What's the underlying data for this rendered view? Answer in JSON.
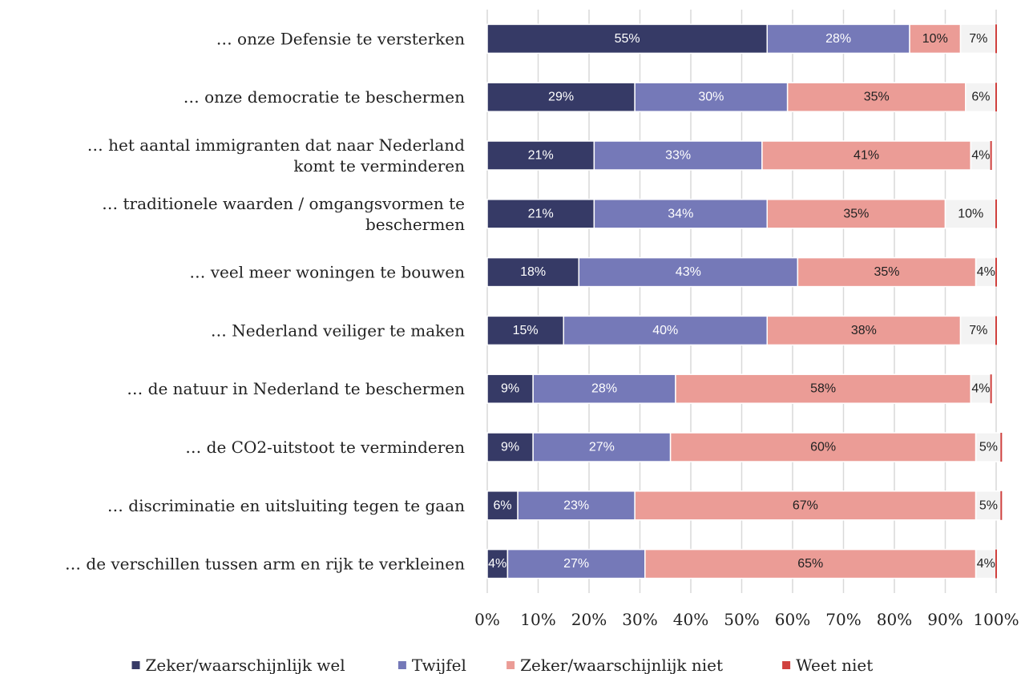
{
  "chart_data": {
    "type": "stacked-bar-horizontal",
    "categories": [
      "… onze Defensie te versterken",
      "… onze democratie te beschermen",
      "… het aantal immigranten dat naar Nederland\nkomt te verminderen",
      "… traditionele waarden / omgangsvormen te\nbeschermen",
      "… veel meer woningen te bouwen",
      "… Nederland veiliger te maken",
      "… de natuur in Nederland te beschermen",
      "… de CO2-uitstoot te verminderen",
      "… discriminatie en uitsluiting tegen te gaan",
      "… de verschillen tussen arm en rijk te verkleinen"
    ],
    "series": [
      {
        "name": "Zeker/waarschijnlijk wel",
        "color": "#363a66",
        "values": [
          55,
          29,
          21,
          21,
          18,
          15,
          9,
          9,
          6,
          4
        ],
        "value_labels": [
          "55%",
          "29%",
          "21%",
          "21%",
          "18%",
          "15%",
          "9%",
          "9%",
          "6%",
          "4%"
        ]
      },
      {
        "name": "Twijfel",
        "color": "#7579b8",
        "values": [
          28,
          30,
          33,
          34,
          43,
          40,
          28,
          27,
          23,
          27
        ],
        "value_labels": [
          "28%",
          "30%",
          "33%",
          "34%",
          "43%",
          "40%",
          "28%",
          "27%",
          "23%",
          "27%"
        ]
      },
      {
        "name": "Zeker/waarschijnlijk niet",
        "color": "#eb9c96",
        "values": [
          10,
          35,
          41,
          35,
          35,
          38,
          58,
          60,
          67,
          65
        ],
        "value_labels": [
          "10%",
          "35%",
          "41%",
          "35%",
          "35%",
          "38%",
          "58%",
          "60%",
          "67%",
          "65%"
        ]
      },
      {
        "name": "Weet niet",
        "color": "#d0413e",
        "values": [
          7,
          6,
          4,
          10,
          4,
          7,
          4,
          5,
          5,
          4
        ],
        "value_labels": [
          "7%",
          "6%",
          "4%",
          "10%",
          "4%",
          "7%",
          "4%",
          "5%",
          "5%",
          "4%"
        ]
      }
    ],
    "xlim": [
      0,
      100
    ],
    "xticks": [
      {
        "value": 0,
        "label": "0%"
      },
      {
        "value": 10,
        "label": "10%"
      },
      {
        "value": 20,
        "label": "20%"
      },
      {
        "value": 30,
        "label": "30%"
      },
      {
        "value": 40,
        "label": "40%"
      },
      {
        "value": 50,
        "label": "50%"
      },
      {
        "value": 60,
        "label": "60%"
      },
      {
        "value": 70,
        "label": "70%"
      },
      {
        "value": 80,
        "label": "80%"
      },
      {
        "value": 90,
        "label": "90%"
      },
      {
        "value": 100,
        "label": "100%"
      }
    ],
    "grid": true,
    "legend": "bottom"
  }
}
